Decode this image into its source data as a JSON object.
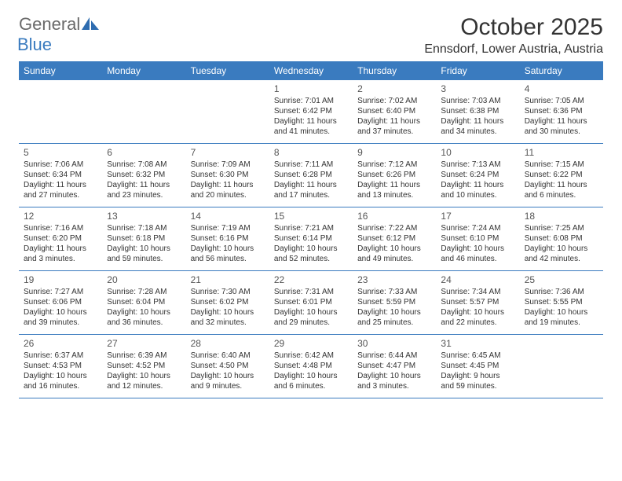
{
  "logo": {
    "text1": "General",
    "text2": "Blue"
  },
  "title": "October 2025",
  "location": "Ennsdorf, Lower Austria, Austria",
  "colors": {
    "header_bg": "#3a7bbf",
    "header_text": "#ffffff",
    "row_border": "#3a7bbf",
    "body_text": "#333333",
    "logo_gray": "#6a6a6a",
    "logo_blue": "#3a7bbf"
  },
  "day_names": [
    "Sunday",
    "Monday",
    "Tuesday",
    "Wednesday",
    "Thursday",
    "Friday",
    "Saturday"
  ],
  "weeks": [
    [
      {
        "n": "",
        "sr": "",
        "ss": "",
        "dl": ""
      },
      {
        "n": "",
        "sr": "",
        "ss": "",
        "dl": ""
      },
      {
        "n": "",
        "sr": "",
        "ss": "",
        "dl": ""
      },
      {
        "n": "1",
        "sr": "Sunrise: 7:01 AM",
        "ss": "Sunset: 6:42 PM",
        "dl": "Daylight: 11 hours and 41 minutes."
      },
      {
        "n": "2",
        "sr": "Sunrise: 7:02 AM",
        "ss": "Sunset: 6:40 PM",
        "dl": "Daylight: 11 hours and 37 minutes."
      },
      {
        "n": "3",
        "sr": "Sunrise: 7:03 AM",
        "ss": "Sunset: 6:38 PM",
        "dl": "Daylight: 11 hours and 34 minutes."
      },
      {
        "n": "4",
        "sr": "Sunrise: 7:05 AM",
        "ss": "Sunset: 6:36 PM",
        "dl": "Daylight: 11 hours and 30 minutes."
      }
    ],
    [
      {
        "n": "5",
        "sr": "Sunrise: 7:06 AM",
        "ss": "Sunset: 6:34 PM",
        "dl": "Daylight: 11 hours and 27 minutes."
      },
      {
        "n": "6",
        "sr": "Sunrise: 7:08 AM",
        "ss": "Sunset: 6:32 PM",
        "dl": "Daylight: 11 hours and 23 minutes."
      },
      {
        "n": "7",
        "sr": "Sunrise: 7:09 AM",
        "ss": "Sunset: 6:30 PM",
        "dl": "Daylight: 11 hours and 20 minutes."
      },
      {
        "n": "8",
        "sr": "Sunrise: 7:11 AM",
        "ss": "Sunset: 6:28 PM",
        "dl": "Daylight: 11 hours and 17 minutes."
      },
      {
        "n": "9",
        "sr": "Sunrise: 7:12 AM",
        "ss": "Sunset: 6:26 PM",
        "dl": "Daylight: 11 hours and 13 minutes."
      },
      {
        "n": "10",
        "sr": "Sunrise: 7:13 AM",
        "ss": "Sunset: 6:24 PM",
        "dl": "Daylight: 11 hours and 10 minutes."
      },
      {
        "n": "11",
        "sr": "Sunrise: 7:15 AM",
        "ss": "Sunset: 6:22 PM",
        "dl": "Daylight: 11 hours and 6 minutes."
      }
    ],
    [
      {
        "n": "12",
        "sr": "Sunrise: 7:16 AM",
        "ss": "Sunset: 6:20 PM",
        "dl": "Daylight: 11 hours and 3 minutes."
      },
      {
        "n": "13",
        "sr": "Sunrise: 7:18 AM",
        "ss": "Sunset: 6:18 PM",
        "dl": "Daylight: 10 hours and 59 minutes."
      },
      {
        "n": "14",
        "sr": "Sunrise: 7:19 AM",
        "ss": "Sunset: 6:16 PM",
        "dl": "Daylight: 10 hours and 56 minutes."
      },
      {
        "n": "15",
        "sr": "Sunrise: 7:21 AM",
        "ss": "Sunset: 6:14 PM",
        "dl": "Daylight: 10 hours and 52 minutes."
      },
      {
        "n": "16",
        "sr": "Sunrise: 7:22 AM",
        "ss": "Sunset: 6:12 PM",
        "dl": "Daylight: 10 hours and 49 minutes."
      },
      {
        "n": "17",
        "sr": "Sunrise: 7:24 AM",
        "ss": "Sunset: 6:10 PM",
        "dl": "Daylight: 10 hours and 46 minutes."
      },
      {
        "n": "18",
        "sr": "Sunrise: 7:25 AM",
        "ss": "Sunset: 6:08 PM",
        "dl": "Daylight: 10 hours and 42 minutes."
      }
    ],
    [
      {
        "n": "19",
        "sr": "Sunrise: 7:27 AM",
        "ss": "Sunset: 6:06 PM",
        "dl": "Daylight: 10 hours and 39 minutes."
      },
      {
        "n": "20",
        "sr": "Sunrise: 7:28 AM",
        "ss": "Sunset: 6:04 PM",
        "dl": "Daylight: 10 hours and 36 minutes."
      },
      {
        "n": "21",
        "sr": "Sunrise: 7:30 AM",
        "ss": "Sunset: 6:02 PM",
        "dl": "Daylight: 10 hours and 32 minutes."
      },
      {
        "n": "22",
        "sr": "Sunrise: 7:31 AM",
        "ss": "Sunset: 6:01 PM",
        "dl": "Daylight: 10 hours and 29 minutes."
      },
      {
        "n": "23",
        "sr": "Sunrise: 7:33 AM",
        "ss": "Sunset: 5:59 PM",
        "dl": "Daylight: 10 hours and 25 minutes."
      },
      {
        "n": "24",
        "sr": "Sunrise: 7:34 AM",
        "ss": "Sunset: 5:57 PM",
        "dl": "Daylight: 10 hours and 22 minutes."
      },
      {
        "n": "25",
        "sr": "Sunrise: 7:36 AM",
        "ss": "Sunset: 5:55 PM",
        "dl": "Daylight: 10 hours and 19 minutes."
      }
    ],
    [
      {
        "n": "26",
        "sr": "Sunrise: 6:37 AM",
        "ss": "Sunset: 4:53 PM",
        "dl": "Daylight: 10 hours and 16 minutes."
      },
      {
        "n": "27",
        "sr": "Sunrise: 6:39 AM",
        "ss": "Sunset: 4:52 PM",
        "dl": "Daylight: 10 hours and 12 minutes."
      },
      {
        "n": "28",
        "sr": "Sunrise: 6:40 AM",
        "ss": "Sunset: 4:50 PM",
        "dl": "Daylight: 10 hours and 9 minutes."
      },
      {
        "n": "29",
        "sr": "Sunrise: 6:42 AM",
        "ss": "Sunset: 4:48 PM",
        "dl": "Daylight: 10 hours and 6 minutes."
      },
      {
        "n": "30",
        "sr": "Sunrise: 6:44 AM",
        "ss": "Sunset: 4:47 PM",
        "dl": "Daylight: 10 hours and 3 minutes."
      },
      {
        "n": "31",
        "sr": "Sunrise: 6:45 AM",
        "ss": "Sunset: 4:45 PM",
        "dl": "Daylight: 9 hours and 59 minutes."
      },
      {
        "n": "",
        "sr": "",
        "ss": "",
        "dl": ""
      }
    ]
  ]
}
